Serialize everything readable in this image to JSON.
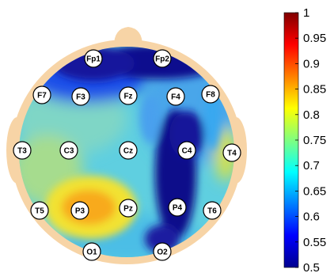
{
  "electrodes": [
    {
      "label": "Fp1"
    },
    {
      "label": "Fp2"
    },
    {
      "label": "F7"
    },
    {
      "label": "F3"
    },
    {
      "label": "Fz"
    },
    {
      "label": "F4"
    },
    {
      "label": "F8"
    },
    {
      "label": "T3"
    },
    {
      "label": "C3"
    },
    {
      "label": "Cz"
    },
    {
      "label": "C4"
    },
    {
      "label": "T4"
    },
    {
      "label": "T5"
    },
    {
      "label": "P3"
    },
    {
      "label": "Pz"
    },
    {
      "label": "P4"
    },
    {
      "label": "T6"
    },
    {
      "label": "O1"
    },
    {
      "label": "O2"
    }
  ],
  "colorbar": {
    "min": 0.5,
    "max": 1,
    "ticks": [
      "1",
      "0.95",
      "0.9",
      "0.85",
      "0.8",
      "0.75",
      "0.7",
      "0.65",
      "0.6",
      "0.55",
      "0.5"
    ],
    "colormap": "jet"
  },
  "colors": {
    "head_skin": "#f7d4a6",
    "jet_dark_blue": "#00008f",
    "jet_dark_red": "#800000"
  }
}
